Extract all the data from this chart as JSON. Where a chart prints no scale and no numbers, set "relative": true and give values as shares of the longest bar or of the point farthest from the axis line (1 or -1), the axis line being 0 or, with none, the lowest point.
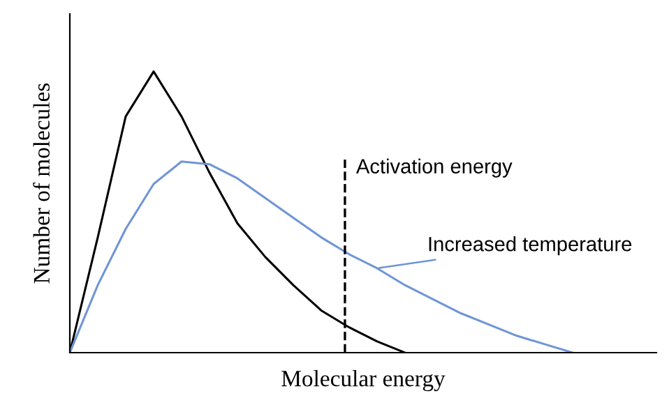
{
  "chart_data": {
    "type": "line",
    "relative": true,
    "xlabel": "Molecular energy",
    "ylabel": "Number of molecules",
    "categories": [
      null,
      null,
      null,
      null,
      null,
      null,
      null,
      null,
      null,
      null,
      null,
      null,
      null,
      null,
      null,
      null,
      null,
      null,
      null,
      null,
      null,
      null
    ],
    "series": [
      {
        "color": "#000000",
        "values": [
          0,
          0.41,
          0.84,
          1.0,
          0.84,
          0.64,
          0.46,
          0.34,
          0.24,
          0.15,
          0.09,
          0.04,
          0,
          null,
          null,
          null,
          null,
          null,
          null,
          null,
          null,
          null
        ]
      },
      {
        "name": "Increased temperature",
        "color": "#6f95d6",
        "values": [
          0,
          0.24,
          0.44,
          0.6,
          0.68,
          0.67,
          0.62,
          0.55,
          0.48,
          0.41,
          0.35,
          0.3,
          0.24,
          0.19,
          0.14,
          0.1,
          0.06,
          0.03,
          0,
          null,
          null,
          null
        ]
      }
    ],
    "annotations": [
      "Activation energy"
    ],
    "grid": false,
    "legend": false,
    "marker": "none",
    "line_style": "solid",
    "tick_labels": false
  }
}
